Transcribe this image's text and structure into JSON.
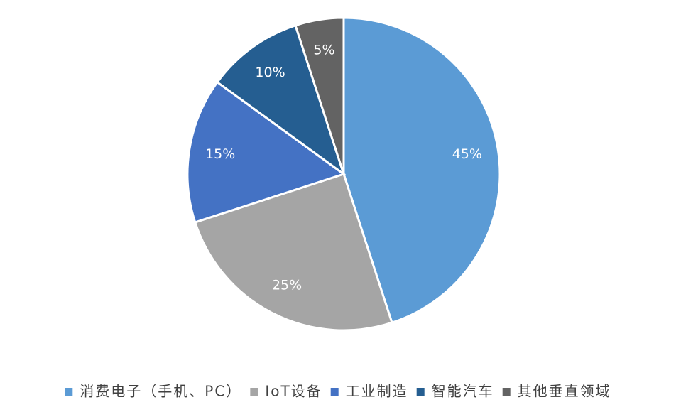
{
  "chart_data": {
    "type": "pie",
    "categories": [
      "消费电子（手机、PC）",
      "IoT设备",
      "工业制造",
      "智能汽车",
      "其他垂直领域"
    ],
    "values": [
      45,
      25,
      15,
      10,
      5
    ],
    "value_labels": [
      "45%",
      "25%",
      "15%",
      "10%",
      "5%"
    ],
    "colors": [
      "#5b9bd5",
      "#a5a5a5",
      "#4472c4",
      "#255e91",
      "#636363"
    ],
    "legend": "bottom"
  }
}
